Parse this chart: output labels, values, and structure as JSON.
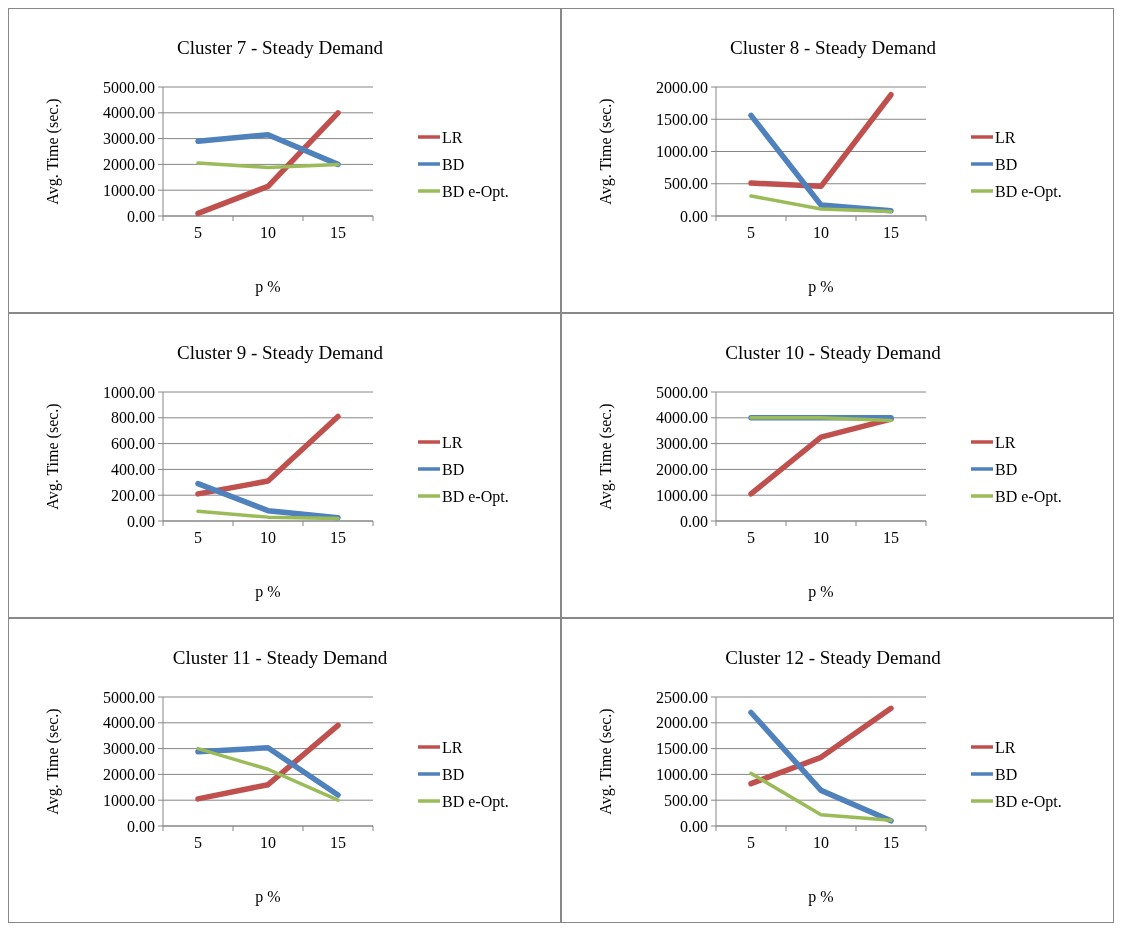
{
  "chart_data": [
    {
      "type": "line",
      "title": "Cluster 7 - Steady Demand",
      "xlabel": "p %",
      "ylabel": "Avg. Time (sec.)",
      "categories": [
        "5",
        "10",
        "15"
      ],
      "ylim": [
        0,
        5000
      ],
      "yticks": [
        {
          "value": 0,
          "label": "0.00"
        },
        {
          "value": 1000,
          "label": "1000.00"
        },
        {
          "value": 2000,
          "label": "2000.00"
        },
        {
          "value": 3000,
          "label": "3000.00"
        },
        {
          "value": 4000,
          "label": "4000.00"
        },
        {
          "value": 5000,
          "label": "5000.00"
        }
      ],
      "grid": "y",
      "legend": "right",
      "marker": "none",
      "series": [
        {
          "name": "LR",
          "color": "#c0504d",
          "values": [
            100,
            1150,
            4000
          ]
        },
        {
          "name": "BD",
          "color": "#4f81bd",
          "values": [
            2900,
            3150,
            2000
          ]
        },
        {
          "name": "BD e-Opt.",
          "color": "#9bbb59",
          "values": [
            2050,
            1880,
            2000
          ]
        }
      ]
    },
    {
      "type": "line",
      "title": "Cluster 8 - Steady Demand",
      "xlabel": "p %",
      "ylabel": "Avg. Time (sec.)",
      "categories": [
        "5",
        "10",
        "15"
      ],
      "ylim": [
        0,
        2000
      ],
      "yticks": [
        {
          "value": 0,
          "label": "0.00"
        },
        {
          "value": 500,
          "label": "500.00"
        },
        {
          "value": 1000,
          "label": "1000.00"
        },
        {
          "value": 1500,
          "label": "1500.00"
        },
        {
          "value": 2000,
          "label": "2000.00"
        }
      ],
      "grid": "y",
      "legend": "right",
      "marker": "none",
      "series": [
        {
          "name": "LR",
          "color": "#c0504d",
          "values": [
            510,
            460,
            1880
          ]
        },
        {
          "name": "BD",
          "color": "#4f81bd",
          "values": [
            1560,
            170,
            80
          ]
        },
        {
          "name": "BD e-Opt.",
          "color": "#9bbb59",
          "values": [
            310,
            110,
            70
          ]
        }
      ]
    },
    {
      "type": "line",
      "title": "Cluster 9 - Steady Demand",
      "xlabel": "p %",
      "ylabel": "Avg. Time (sec.)",
      "categories": [
        "5",
        "10",
        "15"
      ],
      "ylim": [
        0,
        1000
      ],
      "yticks": [
        {
          "value": 0,
          "label": "0.00"
        },
        {
          "value": 200,
          "label": "200.00"
        },
        {
          "value": 400,
          "label": "400.00"
        },
        {
          "value": 600,
          "label": "600.00"
        },
        {
          "value": 800,
          "label": "800.00"
        },
        {
          "value": 1000,
          "label": "1000.00"
        }
      ],
      "grid": "y",
      "legend": "right",
      "marker": "none",
      "series": [
        {
          "name": "LR",
          "color": "#c0504d",
          "values": [
            210,
            310,
            810
          ]
        },
        {
          "name": "BD",
          "color": "#4f81bd",
          "values": [
            290,
            80,
            25
          ]
        },
        {
          "name": "BD e-Opt.",
          "color": "#9bbb59",
          "values": [
            75,
            30,
            20
          ]
        }
      ]
    },
    {
      "type": "line",
      "title": "Cluster 10 - Steady Demand",
      "xlabel": "p %",
      "ylabel": "Avg. Time (sec.)",
      "categories": [
        "5",
        "10",
        "15"
      ],
      "ylim": [
        0,
        5000
      ],
      "yticks": [
        {
          "value": 0,
          "label": "0.00"
        },
        {
          "value": 1000,
          "label": "1000.00"
        },
        {
          "value": 2000,
          "label": "2000.00"
        },
        {
          "value": 3000,
          "label": "3000.00"
        },
        {
          "value": 4000,
          "label": "4000.00"
        },
        {
          "value": 5000,
          "label": "5000.00"
        }
      ],
      "grid": "y",
      "legend": "right",
      "marker": "none",
      "series": [
        {
          "name": "LR",
          "color": "#c0504d",
          "values": [
            1050,
            3250,
            3950
          ]
        },
        {
          "name": "BD",
          "color": "#4f81bd",
          "values": [
            4000,
            4000,
            4000
          ]
        },
        {
          "name": "BD e-Opt.",
          "color": "#9bbb59",
          "values": [
            4000,
            4000,
            3900
          ]
        }
      ]
    },
    {
      "type": "line",
      "title": "Cluster 11 - Steady Demand",
      "xlabel": "p %",
      "ylabel": "Avg. Time (sec.)",
      "categories": [
        "5",
        "10",
        "15"
      ],
      "ylim": [
        0,
        5000
      ],
      "yticks": [
        {
          "value": 0,
          "label": "0.00"
        },
        {
          "value": 1000,
          "label": "1000.00"
        },
        {
          "value": 2000,
          "label": "2000.00"
        },
        {
          "value": 3000,
          "label": "3000.00"
        },
        {
          "value": 4000,
          "label": "4000.00"
        },
        {
          "value": 5000,
          "label": "5000.00"
        }
      ],
      "grid": "y",
      "legend": "right",
      "marker": "none",
      "series": [
        {
          "name": "LR",
          "color": "#c0504d",
          "values": [
            1050,
            1600,
            3900
          ]
        },
        {
          "name": "BD",
          "color": "#4f81bd",
          "values": [
            2880,
            3030,
            1200
          ]
        },
        {
          "name": "BD e-Opt.",
          "color": "#9bbb59",
          "values": [
            3000,
            2200,
            1000
          ]
        }
      ]
    },
    {
      "type": "line",
      "title": "Cluster 12 - Steady Demand",
      "xlabel": "p %",
      "ylabel": "Avg. Time (sec.)",
      "categories": [
        "5",
        "10",
        "15"
      ],
      "ylim": [
        0,
        2500
      ],
      "yticks": [
        {
          "value": 0,
          "label": "0.00"
        },
        {
          "value": 500,
          "label": "500.00"
        },
        {
          "value": 1000,
          "label": "1000.00"
        },
        {
          "value": 1500,
          "label": "1500.00"
        },
        {
          "value": 2000,
          "label": "2000.00"
        },
        {
          "value": 2500,
          "label": "2500.00"
        }
      ],
      "grid": "y",
      "legend": "right",
      "marker": "none",
      "series": [
        {
          "name": "LR",
          "color": "#c0504d",
          "values": [
            820,
            1330,
            2280
          ]
        },
        {
          "name": "BD",
          "color": "#4f81bd",
          "values": [
            2200,
            690,
            100
          ]
        },
        {
          "name": "BD e-Opt.",
          "color": "#9bbb59",
          "values": [
            1020,
            220,
            110
          ]
        }
      ]
    }
  ]
}
